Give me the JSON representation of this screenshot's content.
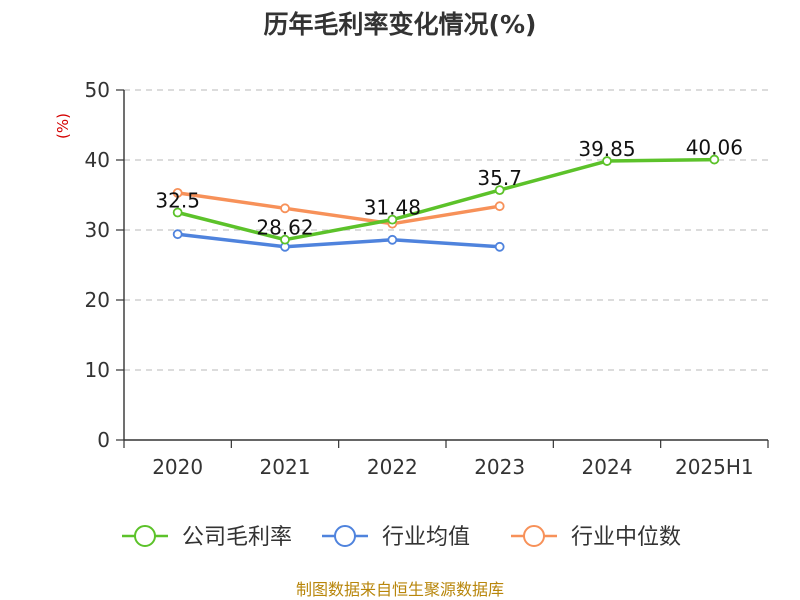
{
  "chart_data": {
    "type": "line",
    "title": "历年毛利率变化情况(%)",
    "ylabel": "(%)",
    "xlabel": "",
    "categories": [
      "2020",
      "2021",
      "2022",
      "2023",
      "2024",
      "2025H1"
    ],
    "ylim": [
      0,
      50
    ],
    "yticks": [
      0,
      10,
      20,
      30,
      40,
      50
    ],
    "grid": true,
    "legend_position": "bottom",
    "series": [
      {
        "name": "公司毛利率",
        "color": "#5cc22a",
        "values": [
          32.5,
          28.62,
          31.48,
          35.7,
          39.85,
          40.06
        ],
        "labels": [
          "32.5",
          "28.62",
          "31.48",
          "35.7",
          "39.85",
          "40.06"
        ]
      },
      {
        "name": "行业均值",
        "color": "#4f83dd",
        "values": [
          29.4,
          27.6,
          28.6,
          27.6,
          null,
          null
        ]
      },
      {
        "name": "行业中位数",
        "color": "#f79159",
        "values": [
          35.3,
          33.1,
          30.9,
          33.4,
          null,
          null
        ]
      }
    ]
  },
  "footer": "制图数据来自恒生聚源数据库"
}
